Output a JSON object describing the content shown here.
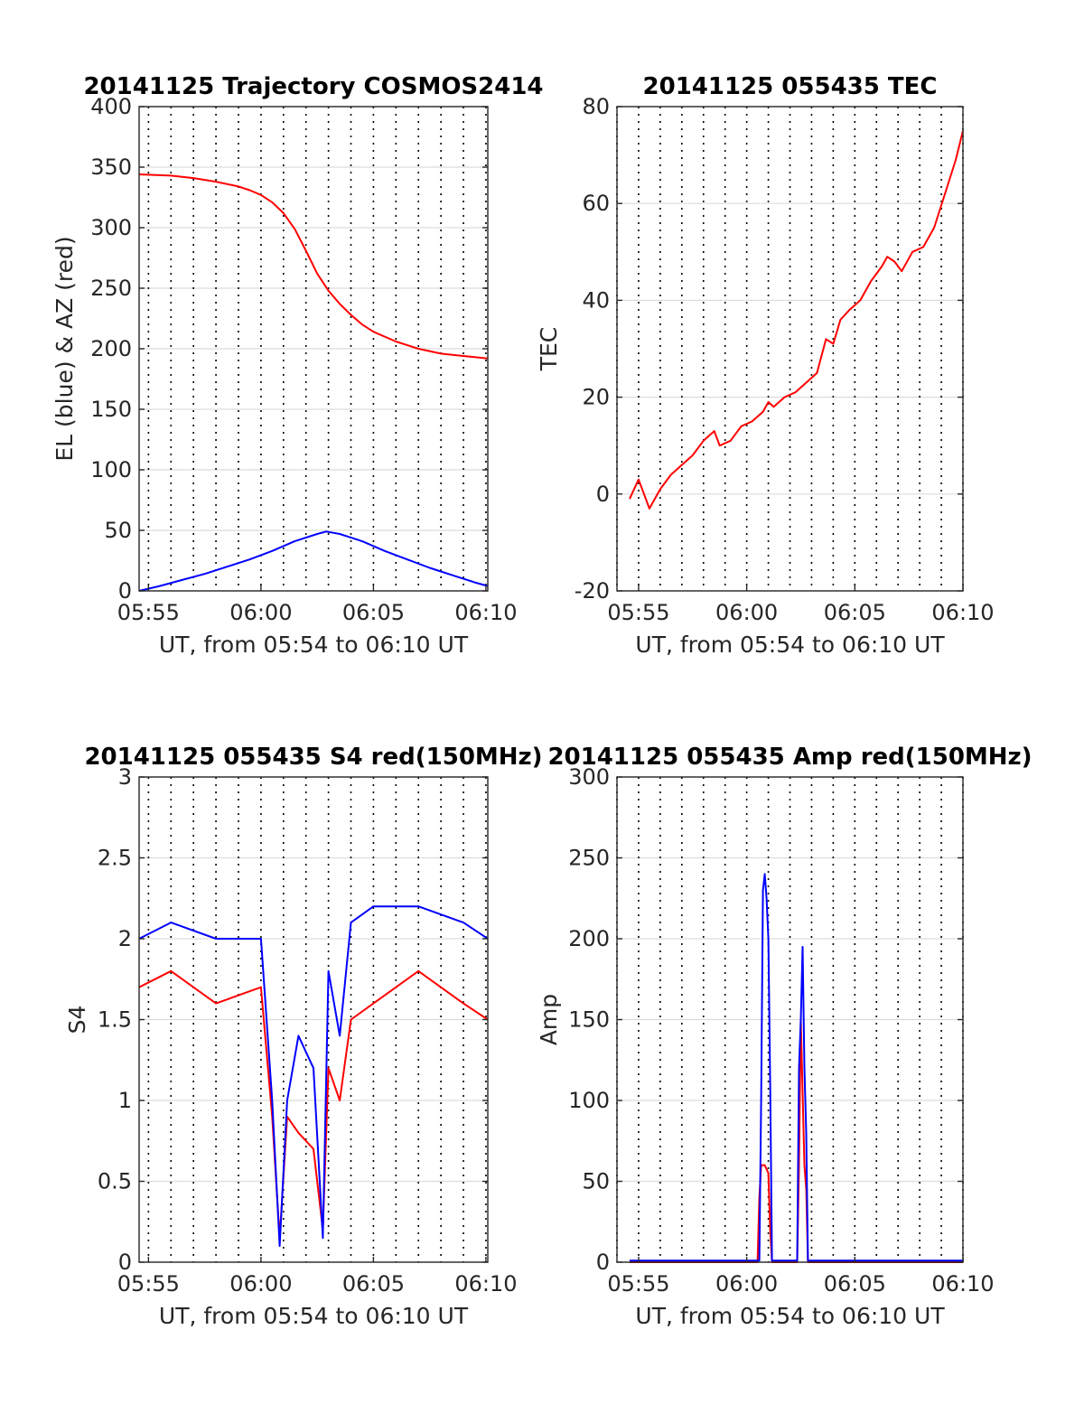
{
  "chart_data": [
    {
      "id": "trajectory",
      "type": "line",
      "title": "20141125 Trajectory COSMOS2414",
      "xlabel": "UT, from 05:54 to 06:10 UT",
      "ylabel": "EL (blue) & AZ (red)",
      "xlim": [
        "05:54:35",
        "06:10:05"
      ],
      "ylim": [
        0,
        400
      ],
      "xticks": [
        "05:55",
        "06:00",
        "06:05",
        "06:10"
      ],
      "yticks": [
        0,
        50,
        100,
        150,
        200,
        250,
        300,
        350,
        400
      ],
      "grid": true,
      "minor_time_lines": true,
      "series": [
        {
          "color": "#ff0000",
          "x": [
            "05:54:35",
            "05:56:00",
            "05:57:00",
            "05:58:00",
            "05:59:00",
            "05:59:30",
            "06:00:00",
            "06:00:30",
            "06:01:00",
            "06:01:30",
            "06:02:00",
            "06:02:30",
            "06:03:00",
            "06:03:30",
            "06:04:00",
            "06:04:30",
            "06:05:00",
            "06:06:00",
            "06:07:00",
            "06:08:00",
            "06:09:00",
            "06:10:05"
          ],
          "values": [
            344,
            343,
            341,
            338,
            334,
            331,
            327,
            321,
            312,
            299,
            281,
            262,
            248,
            237,
            228,
            220,
            214,
            206,
            200,
            196,
            194,
            192
          ]
        },
        {
          "color": "#0000ff",
          "x": [
            "05:54:35",
            "05:55:30",
            "05:56:30",
            "05:57:30",
            "05:58:30",
            "05:59:30",
            "06:00:30",
            "06:01:30",
            "06:02:30",
            "06:02:54",
            "06:03:30",
            "06:04:30",
            "06:05:30",
            "06:06:30",
            "06:07:30",
            "06:08:30",
            "06:09:30",
            "06:10:05"
          ],
          "values": [
            0,
            4,
            9,
            14,
            20,
            26,
            33,
            41,
            47,
            49,
            47,
            41,
            33,
            26,
            19,
            13,
            7,
            4
          ]
        }
      ]
    },
    {
      "id": "tec",
      "type": "line",
      "title": "20141125 055435 TEC",
      "xlabel": "UT, from 05:54 to 06:10 UT",
      "ylabel": "TEC",
      "xlim": [
        "05:54:00",
        "06:10:00"
      ],
      "ylim": [
        -20,
        80
      ],
      "xticks": [
        "05:55",
        "06:00",
        "06:05",
        "06:10"
      ],
      "yticks": [
        -20,
        0,
        20,
        40,
        60,
        80
      ],
      "grid": true,
      "minor_time_lines": true,
      "series": [
        {
          "color": "#ff0000",
          "x": [
            "05:54:35",
            "05:55:00",
            "05:55:30",
            "05:56:00",
            "05:56:30",
            "05:57:00",
            "05:57:30",
            "05:58:00",
            "05:58:30",
            "05:58:45",
            "05:59:15",
            "05:59:45",
            "06:00:15",
            "06:00:45",
            "06:01:00",
            "06:01:15",
            "06:01:45",
            "06:02:15",
            "06:02:45",
            "06:03:00",
            "06:03:15",
            "06:03:40",
            "06:04:00",
            "06:04:20",
            "06:04:45",
            "06:05:15",
            "06:05:45",
            "06:06:15",
            "06:06:30",
            "06:06:50",
            "06:07:10",
            "06:07:40",
            "06:08:10",
            "06:08:40",
            "06:09:10",
            "06:09:40",
            "06:10:00"
          ],
          "values": [
            -1,
            3,
            -3,
            1,
            4,
            6,
            8,
            11,
            13,
            10,
            11,
            14,
            15,
            17,
            19,
            18,
            20,
            21,
            23,
            24,
            25,
            32,
            31,
            36,
            38,
            40,
            44,
            47,
            49,
            48,
            46,
            50,
            51,
            55,
            62,
            69,
            75
          ]
        }
      ]
    },
    {
      "id": "s4",
      "type": "line",
      "title": "20141125 055435 S4 red(150MHz)",
      "xlabel": "UT, from 05:54 to 06:10 UT",
      "ylabel": "S4",
      "xlim": [
        "05:54:35",
        "06:10:05"
      ],
      "ylim": [
        0,
        3
      ],
      "xticks": [
        "05:55",
        "06:00",
        "06:05",
        "06:10"
      ],
      "yticks": [
        0,
        0.5,
        1,
        1.5,
        2,
        2.5,
        3
      ],
      "grid": true,
      "minor_time_lines": true,
      "series": [
        {
          "color": "#ff0000",
          "description_envelope_low": 0,
          "x": [
            "05:54:35",
            "05:56:00",
            "05:58:00",
            "06:00:00",
            "06:00:30",
            "06:00:50",
            "06:01:10",
            "06:01:40",
            "06:02:20",
            "06:02:45",
            "06:03:00",
            "06:03:30",
            "06:04:00",
            "06:05:00",
            "06:07:00",
            "06:09:00",
            "06:10:05"
          ],
          "values": [
            1.7,
            1.8,
            1.6,
            1.7,
            0.9,
            0.15,
            0.9,
            0.8,
            0.7,
            0.2,
            1.2,
            1.0,
            1.5,
            1.6,
            1.8,
            1.6,
            1.5
          ]
        },
        {
          "color": "#0000ff",
          "x": [
            "05:54:35",
            "05:56:00",
            "05:58:00",
            "06:00:00",
            "06:00:30",
            "06:00:50",
            "06:01:10",
            "06:01:40",
            "06:02:20",
            "06:02:45",
            "06:03:00",
            "06:03:30",
            "06:04:00",
            "06:05:00",
            "06:07:00",
            "06:09:00",
            "06:10:05"
          ],
          "values": [
            2.0,
            2.1,
            2.0,
            2.0,
            1.0,
            0.1,
            1.0,
            1.4,
            1.2,
            0.15,
            1.8,
            1.4,
            2.1,
            2.2,
            2.2,
            2.1,
            2.0
          ]
        }
      ]
    },
    {
      "id": "amp",
      "type": "line",
      "title": "20141125 055435 Amp red(150MHz)",
      "xlabel": "UT, from 05:54 to 06:10 UT",
      "ylabel": "Amp",
      "xlim": [
        "05:54:00",
        "06:10:00"
      ],
      "ylim": [
        0,
        300
      ],
      "xticks": [
        "05:55",
        "06:00",
        "06:05",
        "06:10"
      ],
      "yticks": [
        0,
        50,
        100,
        150,
        200,
        250,
        300
      ],
      "grid": true,
      "minor_time_lines": true,
      "series": [
        {
          "color": "#ff0000",
          "x": [
            "05:54:35",
            "06:00:30",
            "06:00:35",
            "06:00:40",
            "06:00:50",
            "06:01:00",
            "06:01:05",
            "06:01:10",
            "06:02:20",
            "06:02:25",
            "06:02:30",
            "06:02:40",
            "06:02:45",
            "06:02:50",
            "06:10:00"
          ],
          "values": [
            0,
            0,
            40,
            60,
            60,
            55,
            20,
            0,
            0,
            60,
            150,
            60,
            45,
            0,
            0
          ]
        },
        {
          "color": "#0000ff",
          "x": [
            "05:54:35",
            "06:00:35",
            "06:00:40",
            "06:00:45",
            "06:00:50",
            "06:00:55",
            "06:01:00",
            "06:01:05",
            "06:01:10",
            "06:02:20",
            "06:02:25",
            "06:02:30",
            "06:02:35",
            "06:02:40",
            "06:02:45",
            "06:02:50",
            "06:10:00"
          ],
          "values": [
            1,
            1,
            100,
            230,
            240,
            225,
            200,
            110,
            1,
            1,
            120,
            150,
            195,
            120,
            80,
            1,
            1
          ]
        }
      ]
    }
  ]
}
